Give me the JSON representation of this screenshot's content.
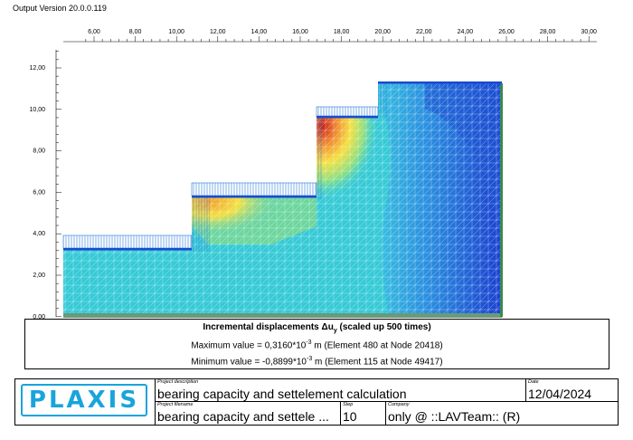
{
  "header": {
    "version": "Output Version 20.0.0.119"
  },
  "axes": {
    "x_ticks": [
      "6,00",
      "8,00",
      "10,00",
      "12,00",
      "14,00",
      "16,00",
      "18,00",
      "20,00",
      "22,00",
      "24,00",
      "26,00",
      "28,00",
      "30,00"
    ],
    "y_ticks": [
      "12,00",
      "10,00",
      "8,00",
      "6,00",
      "4,00",
      "2,00",
      "0,00"
    ]
  },
  "legend": {
    "title": "Incremental displacements Δu",
    "title_sub": "y",
    "title_suffix": " (scaled up 500 times)",
    "max_prefix": "Maximum value = 0,3160*10",
    "max_exp": "-3",
    "max_suffix": " m (Element 480 at Node 20418)",
    "min_prefix": "Minimum value = -0,8899*10",
    "min_exp": "-3",
    "min_suffix": " m (Element 115 at Node 49417)"
  },
  "footer": {
    "logo": "PLAXIS",
    "description_label": "Project description",
    "description": "bearing capacity and settelement calculation",
    "date_label": "Date",
    "date": "12/04/2024",
    "filename_label": "Project filename",
    "filename": "bearing capacity and settele ...",
    "step_label": "Step",
    "step": "10",
    "company_label": "Company",
    "company": "only @ ::LAVTeam:: (R)"
  },
  "colors": {
    "accent": "#19a4dc",
    "soil_base": "#33c8d8",
    "mesh": "#ffffff"
  }
}
